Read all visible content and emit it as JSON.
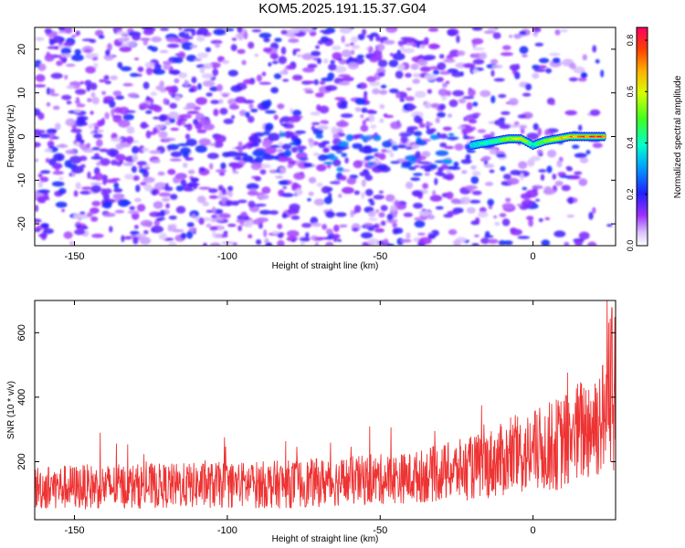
{
  "title": "KOM5.2025.191.15.37.G04",
  "chart_data": [
    {
      "type": "heatmap",
      "xlabel": "Height of straight line (km)",
      "ylabel": "Frequency (Hz)",
      "xlim": [
        -163,
        27
      ],
      "ylim": [
        -25,
        25
      ],
      "xticks": [
        -150,
        -100,
        -50,
        0
      ],
      "yticks": [
        -20,
        -10,
        0,
        10,
        20
      ],
      "grid": false,
      "colorbar": {
        "label": "Normalized spectral amplitude",
        "range": [
          0,
          0.85
        ],
        "ticks": [
          0.0,
          0.2,
          0.4,
          0.6,
          0.8
        ]
      },
      "ridge": {
        "note": "strong narrowband signal near 0 Hz",
        "x": [
          -20,
          -16,
          -12,
          -8,
          -4,
          0,
          4,
          8,
          12,
          16,
          20,
          24
        ],
        "frequency": [
          -2,
          -1.5,
          -1,
          -0.5,
          -0.5,
          -2,
          -1,
          -0.5,
          0,
          0,
          0,
          0
        ],
        "amplitude": [
          0.35,
          0.42,
          0.45,
          0.55,
          0.6,
          0.4,
          0.5,
          0.6,
          0.7,
          0.75,
          0.82,
          0.8
        ]
      },
      "noise_level": 0.12
    },
    {
      "type": "line",
      "xlabel": "Height of straight line (km)",
      "ylabel": "SNR (10 * v/v)",
      "xlim": [
        -163,
        27
      ],
      "ylim": [
        20,
        700
      ],
      "xticks": [
        -150,
        -100,
        -50,
        0
      ],
      "yticks": [
        200,
        400,
        600
      ],
      "grid": false,
      "series": [
        {
          "color": "#ee3333",
          "trend_x": [
            -163,
            -120,
            -80,
            -40,
            -20,
            0,
            10,
            20,
            27
          ],
          "trend_y": [
            120,
            125,
            130,
            150,
            180,
            230,
            260,
            320,
            360
          ],
          "spread": [
            70,
            70,
            75,
            80,
            100,
            130,
            150,
            180,
            200
          ],
          "max_peak": 700
        }
      ]
    }
  ]
}
